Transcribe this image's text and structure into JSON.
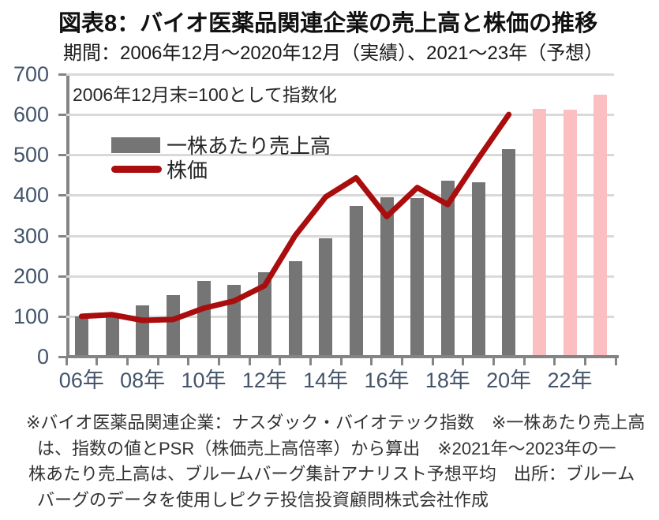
{
  "header": {
    "title": "図表8：バイオ医薬品関連企業の売上高と株価の推移",
    "subtitle": "期間：2006年12月～2020年12月（実績）、2021～23年（予想）"
  },
  "chart_data": {
    "type": "combo",
    "title": "図表8：バイオ医薬品関連企業の売上高と株価の推移",
    "subtitle": "期間：2006年12月～2020年12月（実績）、2021～23年（予想）",
    "annotation": "2006年12月末=100として指数化",
    "categories": [
      "2006",
      "2007",
      "2008",
      "2009",
      "2010",
      "2011",
      "2012",
      "2013",
      "2014",
      "2015",
      "2016",
      "2017",
      "2018",
      "2019",
      "2020",
      "2021",
      "2022",
      "2023"
    ],
    "x_tick_labels": [
      "06年",
      "08年",
      "10年",
      "12年",
      "14年",
      "16年",
      "18年",
      "20年",
      "22年"
    ],
    "y_ticks": [
      0,
      100,
      200,
      300,
      400,
      500,
      600,
      700
    ],
    "ylim": [
      0,
      700
    ],
    "grid": true,
    "legend_position": "top-left-inside",
    "series": [
      {
        "name": "一株あたり売上高",
        "type": "bar",
        "values": [
          95,
          98,
          124,
          149,
          183,
          175,
          206,
          232,
          290,
          370,
          392,
          389,
          433,
          428,
          510,
          611,
          608,
          646
        ],
        "forecast_start_category": "2021",
        "note": "2021-2023 are forecast (pink bars)"
      },
      {
        "name": "株価",
        "type": "line",
        "values": [
          100,
          104,
          90,
          92,
          120,
          138,
          176,
          300,
          396,
          443,
          347,
          419,
          377,
          491,
          600,
          null,
          null,
          null
        ]
      }
    ],
    "colors": {
      "bar_actual": "#757575",
      "bar_forecast": "#FBBFC1",
      "line": "#A90D0D",
      "gridline": "#D9D9D9",
      "axis": "#848484",
      "axis_label": "#44546A"
    }
  },
  "footnote": {
    "lines": [
      "※バイオ医薬品関連企業：ナスダック・バイオテック指数　※一株あたり売上高",
      "は、指数の値とPSR（株価売上高倍率）から算出　※2021年～2023年の一",
      "株あたり売上高は、ブルームバーグ集計アナリスト予想平均　出所：ブルーム",
      "バーグのデータを使用しピクテ投信投資顧問株式会社作成"
    ]
  }
}
